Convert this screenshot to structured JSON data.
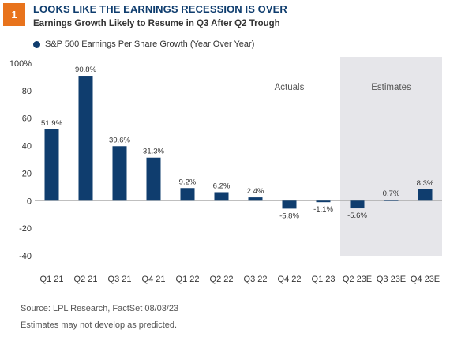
{
  "header": {
    "badge": "1",
    "title": "LOOKS LIKE THE EARNINGS RECESSION IS OVER",
    "subtitle": "Earnings Growth Likely to Resume in Q3 After Q2 Trough"
  },
  "colors": {
    "accent": "#e8731c",
    "bar": "#0f3d6e",
    "estimate_shade": "#e6e6ea"
  },
  "chart_data": {
    "type": "bar",
    "legend": "S&P 500 Earnings Per Share Growth (Year Over Year)",
    "categories": [
      "Q1 21",
      "Q2 21",
      "Q3 21",
      "Q4 21",
      "Q1 22",
      "Q2 22",
      "Q3 22",
      "Q4 22",
      "Q1 23",
      "Q2 23E",
      "Q3 23E",
      "Q4 23E"
    ],
    "values": [
      51.9,
      90.8,
      39.6,
      31.3,
      9.2,
      6.2,
      2.4,
      -5.8,
      -1.1,
      -5.6,
      0.7,
      8.3
    ],
    "value_labels": [
      "51.9%",
      "90.8%",
      "39.6%",
      "31.3%",
      "9.2%",
      "6.2%",
      "2.4%",
      "-5.8%",
      "-1.1%",
      "-5.6%",
      "0.7%",
      "8.3%"
    ],
    "ylim": [
      -40,
      100
    ],
    "yticks": [
      -40,
      -20,
      0,
      20,
      40,
      60,
      80,
      100
    ],
    "ytick_labels": [
      "-40",
      "-20",
      "0",
      "20",
      "40",
      "60",
      "80",
      "100%"
    ],
    "region_labels": [
      "Actuals",
      "Estimates"
    ],
    "estimate_start_index": 9,
    "grid": false
  },
  "footer": {
    "source": "Source: LPL Research, FactSet  08/03/23",
    "note": "Estimates may not develop as predicted."
  }
}
